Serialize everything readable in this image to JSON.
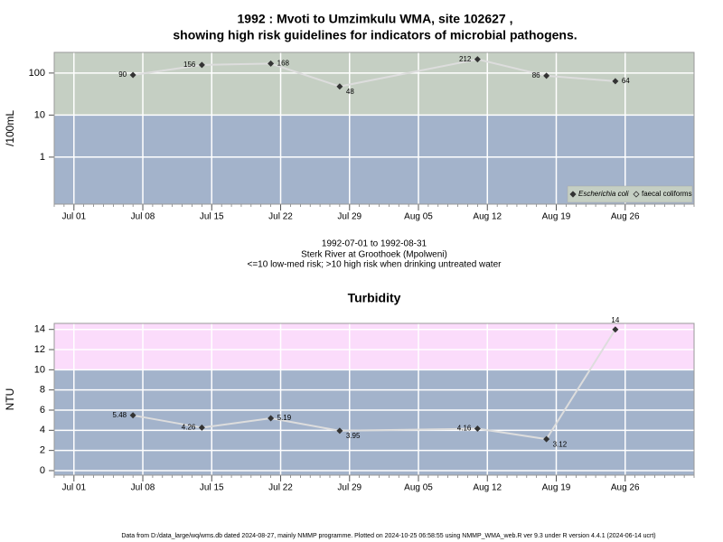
{
  "footer": "Data from D:/data_large/wq/wms.db dated 2024-08-27, mainly NMMP programme. Plotted on 2024-10-25 06:58:55 using NMMP_WMA_web.R ver 9.3 under R version 4.4.1 (2024-06-14 ucrt)",
  "chart_data": [
    {
      "type": "line",
      "title": [
        "1992 : Mvoti to Umzimkulu WMA, site 102627 ,",
        "showing high risk guidelines for indicators of microbial pathogens."
      ],
      "ylabel": "/100mL",
      "caption": [
        "1992-07-01 to 1992-08-31",
        "Sterk River at Groothoek (Mpolweni)",
        "<=10 low-med risk; >10 high risk when drinking untreated water"
      ],
      "x": [
        "Jul 07",
        "Jul 14",
        "Jul 21",
        "Jul 28",
        "Aug 11",
        "Aug 18",
        "Aug 25"
      ],
      "series": [
        {
          "name": "Escherichia coli",
          "color": "#333333",
          "values": [
            90,
            156,
            168,
            48,
            212,
            86,
            64
          ]
        },
        {
          "name": "faecal coliforms",
          "color": "#333333",
          "values": [
            null,
            null,
            null,
            null,
            null,
            null,
            null
          ]
        }
      ],
      "xlim": [
        "Jun 29",
        "Sep 02"
      ],
      "xticks": [
        "Jul 01",
        "Jul 08",
        "Jul 15",
        "Jul 22",
        "Jul 29",
        "Aug 05",
        "Aug 12",
        "Aug 19",
        "Aug 26"
      ],
      "ylim": [
        0.076,
        310
      ],
      "yticks": [
        1,
        10,
        100
      ],
      "log_scale": true,
      "grid": true,
      "background": "#a3b3cb",
      "high_risk_from": 10,
      "high_risk_color": "#c5cfc3",
      "line_color": "#dddddd",
      "legend": "bottom-right"
    },
    {
      "type": "line",
      "title": "Turbidity",
      "ylabel": "NTU",
      "x": [
        "Jul 07",
        "Jul 14",
        "Jul 21",
        "Jul 28",
        "Aug 11",
        "Aug 18",
        "Aug 25"
      ],
      "series": [
        {
          "color": "#333333",
          "values": [
            5.48,
            4.26,
            5.19,
            3.95,
            4.16,
            3.12,
            14
          ]
        }
      ],
      "xlim": [
        "Jun 29",
        "Sep 02"
      ],
      "xticks": [
        "Jul 01",
        "Jul 08",
        "Jul 15",
        "Jul 22",
        "Jul 29",
        "Aug 05",
        "Aug 12",
        "Aug 19",
        "Aug 26"
      ],
      "ylim": [
        -0.45,
        14.6
      ],
      "yticks": [
        0,
        2,
        4,
        6,
        8,
        10,
        12,
        14
      ],
      "log_scale": false,
      "grid": true,
      "background": "#a3b3cb",
      "high_risk_from": 10,
      "high_risk_color": "#fbdcfb",
      "line_color": "#dddddd"
    }
  ]
}
